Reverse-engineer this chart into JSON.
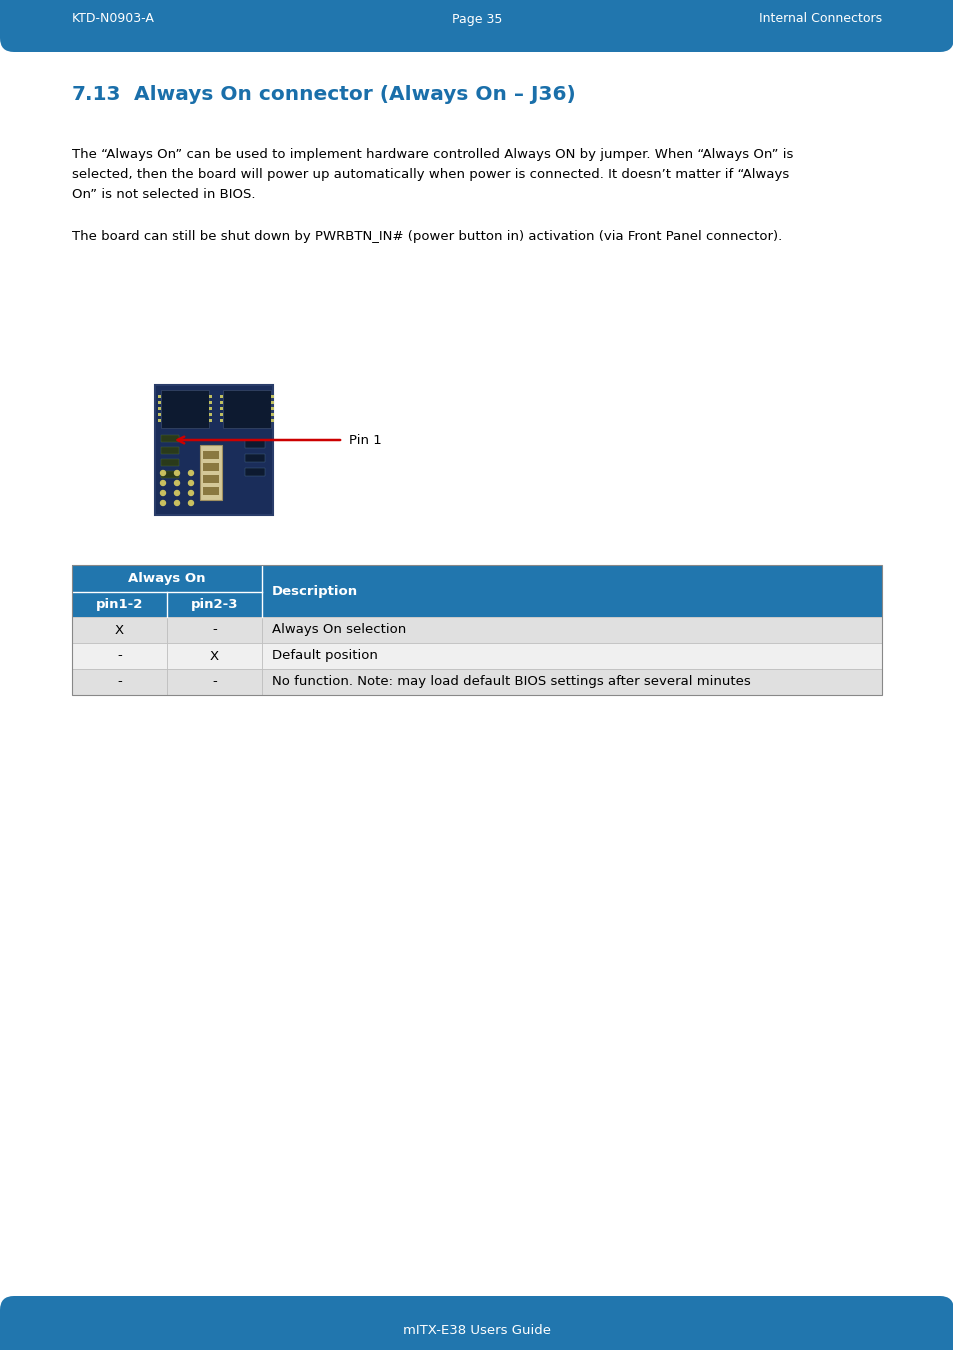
{
  "header_bg": "#2176AE",
  "header_text_color": "#FFFFFF",
  "header_left": "KTD-N0903-A",
  "header_center": "Page 35",
  "header_right": "Internal Connectors",
  "footer_bg": "#2176AE",
  "footer_text": "mITX-E38 Users Guide",
  "footer_text_color": "#FFFFFF",
  "section_number": "7.13",
  "section_title": "  Always On connector (Always On – J36)",
  "section_number_color": "#1a6faa",
  "section_title_color": "#1a6faa",
  "body_text1_line1": "The “Always On” can be used to implement hardware controlled Always ON by jumper. When “Always On” is",
  "body_text1_line2": "selected, then the board will power up automatically when power is connected. It doesn’t matter if “Always",
  "body_text1_line3": "On” is not selected in BIOS.",
  "body_text2": "The board can still be shut down by PWRBTN_IN# (power button in) activation (via Front Panel connector).",
  "pin1_label": "Pin 1",
  "arrow_color": "#CC0000",
  "table_header_bg": "#2176AE",
  "table_header_text_color": "#FFFFFF",
  "table_row1_bg": "#E0E0E0",
  "table_row2_bg": "#F0F0F0",
  "table_row3_bg": "#E0E0E0",
  "table_col1_header": "Always On",
  "table_subcol1": "pin1-2",
  "table_subcol2": "pin2-3",
  "table_col2_header": "Description",
  "table_rows": [
    [
      "X",
      "-",
      "Always On selection"
    ],
    [
      "-",
      "X",
      "Default position"
    ],
    [
      "-",
      "-",
      "No function. Note: may load default BIOS settings after several minutes"
    ]
  ],
  "page_bg": "#FFFFFF",
  "body_font_color": "#000000",
  "body_font_size": 9.5,
  "pcb_bg": "#1a2d5a",
  "pcb_border": "#2a3d6a"
}
